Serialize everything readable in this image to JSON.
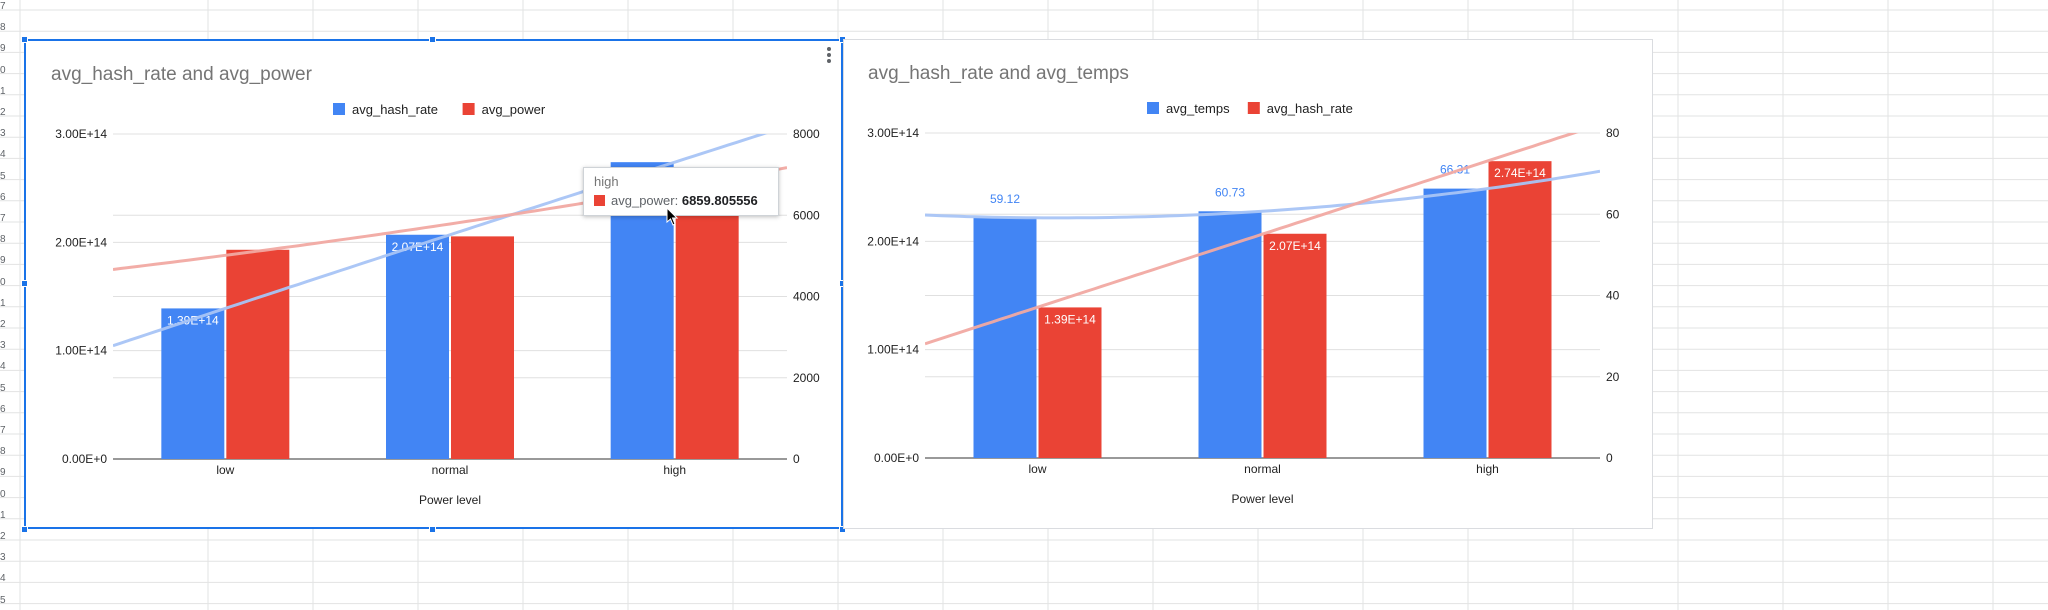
{
  "spreadsheet": {
    "row_numbers": [
      "7",
      "8",
      "9",
      "0",
      "1",
      "2",
      "3",
      "4",
      "5",
      "6",
      "7",
      "8",
      "9",
      "0",
      "1",
      "2",
      "3",
      "4",
      "5",
      "6",
      "7",
      "8",
      "9",
      "0",
      "1",
      "2",
      "3",
      "4",
      "5"
    ]
  },
  "colors": {
    "blue": "#4285f4",
    "red": "#ea4335",
    "trend_blue": "#a8c4f5",
    "trend_red": "#f1a9a2",
    "grid": "#e0e0e0",
    "axis": "#333333",
    "selection": "#1a73e8"
  },
  "chart1": {
    "menu_icon": "more-vert-icon",
    "tooltip": {
      "title": "high",
      "series": "avg_power",
      "value": "6859.805556"
    }
  },
  "chart_data": [
    {
      "type": "bar",
      "title": "avg_hash_rate and avg_power",
      "xlabel": "Power level",
      "categories": [
        "low",
        "normal",
        "high"
      ],
      "left_axis": {
        "ylim": [
          0,
          300000000000000.0
        ],
        "ticks": [
          "0.00E+0",
          "1.00E+14",
          "2.00E+14",
          "3.00E+14"
        ]
      },
      "right_axis": {
        "ylim": [
          0,
          8000
        ],
        "ticks": [
          "0",
          "2000",
          "4000",
          "6000",
          "8000"
        ]
      },
      "legend_position": "top",
      "series": [
        {
          "name": "avg_hash_rate",
          "axis": "left",
          "color": "#4285f4",
          "values": [
            139000000000000.0,
            207000000000000.0,
            274000000000000.0
          ],
          "labels": [
            "1.39E+14",
            "2.07E+14",
            ""
          ],
          "label_style": "inside"
        },
        {
          "name": "avg_power",
          "axis": "right",
          "color": "#ea4335",
          "values": [
            5150,
            5480,
            6859.805556
          ],
          "labels": [
            "",
            "",
            ""
          ],
          "label_style": "inside"
        }
      ],
      "trendlines": [
        {
          "series": "avg_hash_rate",
          "axis": "left",
          "kind": "polynomial",
          "color": "#a8c4f5"
        },
        {
          "series": "avg_power",
          "axis": "right",
          "kind": "exponential",
          "color": "#f1a9a2"
        }
      ],
      "grid": true
    },
    {
      "type": "bar",
      "title": "avg_hash_rate and avg_temps",
      "xlabel": "Power level",
      "categories": [
        "low",
        "normal",
        "high"
      ],
      "left_axis": {
        "ylim": [
          0,
          300000000000000.0
        ],
        "ticks": [
          "0.00E+0",
          "1.00E+14",
          "2.00E+14",
          "3.00E+14"
        ]
      },
      "right_axis": {
        "ylim": [
          0,
          80
        ],
        "ticks": [
          "0",
          "20",
          "40",
          "60",
          "80"
        ]
      },
      "legend_position": "top",
      "series": [
        {
          "name": "avg_temps",
          "axis": "right",
          "color": "#4285f4",
          "values": [
            59.12,
            60.73,
            66.31
          ],
          "labels": [
            "59.12",
            "60.73",
            "66.31"
          ],
          "label_style": "above"
        },
        {
          "name": "avg_hash_rate",
          "axis": "left",
          "color": "#ea4335",
          "values": [
            139000000000000.0,
            207000000000000.0,
            274000000000000.0
          ],
          "labels": [
            "1.39E+14",
            "2.07E+14",
            "2.74E+14"
          ],
          "label_style": "inside"
        }
      ],
      "trendlines": [
        {
          "series": "avg_temps",
          "axis": "right",
          "kind": "polynomial",
          "color": "#a8c4f5"
        },
        {
          "series": "avg_hash_rate",
          "axis": "left",
          "kind": "linear",
          "color": "#f1a9a2"
        }
      ],
      "grid": true
    }
  ]
}
